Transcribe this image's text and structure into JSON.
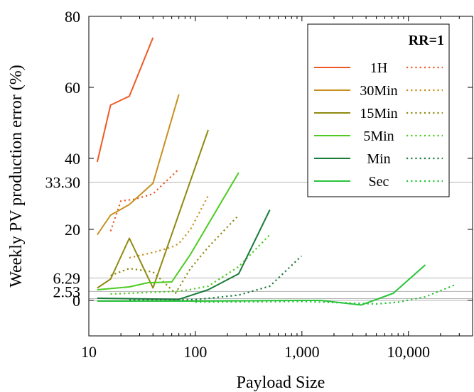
{
  "chart_data": {
    "type": "line",
    "xlabel": "Payload Size",
    "ylabel": "Weekly PV production error (%)",
    "xscale": "log",
    "xlim": [
      10,
      40000
    ],
    "ylim": [
      -10,
      80
    ],
    "grid": false,
    "xticks": [
      10,
      100,
      1000,
      10000
    ],
    "xtick_labels": [
      "10",
      "100",
      "1,000",
      "10,000"
    ],
    "yticks": [
      0,
      20,
      40,
      60,
      80
    ],
    "ytick_labels": [
      "0",
      "20",
      "40",
      "60",
      "80"
    ],
    "reference_lines": [
      {
        "value": 33.3,
        "label": "33.30"
      },
      {
        "value": 6.29,
        "label": "6.29"
      },
      {
        "value": 2.53,
        "label": "2.53"
      },
      {
        "value": 0.5,
        "label": ""
      },
      {
        "value": 0,
        "label": "0"
      }
    ],
    "legend": {
      "title": "RR=1",
      "position": "top-right"
    },
    "series": [
      {
        "name": "1H",
        "color": "#ee5a24",
        "style": "solid",
        "x": [
          12,
          16,
          24,
          40
        ],
        "y": [
          39,
          55,
          57.5,
          74
        ]
      },
      {
        "name": "1H",
        "color": "#ee5a24",
        "style": "dotted",
        "x": [
          16,
          20,
          27,
          40,
          70
        ],
        "y": [
          19.5,
          28,
          28.5,
          30,
          37
        ]
      },
      {
        "name": "30Min",
        "color": "#c8901f",
        "style": "solid",
        "x": [
          12,
          16,
          24,
          40,
          70
        ],
        "y": [
          18.5,
          24,
          27,
          33,
          58
        ]
      },
      {
        "name": "30Min",
        "color": "#c8901f",
        "style": "dotted",
        "x": [
          24,
          40,
          60,
          70,
          90,
          132
        ],
        "y": [
          12,
          13.5,
          15,
          16,
          20,
          29.5
        ]
      },
      {
        "name": "15Min",
        "color": "#8f8a10",
        "style": "solid",
        "x": [
          12,
          16,
          24,
          40,
          132
        ],
        "y": [
          3.5,
          6,
          17.5,
          3.5,
          48
        ]
      },
      {
        "name": "15Min",
        "color": "#8f8a10",
        "style": "dotted",
        "x": [
          16,
          24,
          40,
          65,
          90,
          132,
          255
        ],
        "y": [
          7,
          9,
          8,
          2,
          9,
          15,
          24
        ]
      },
      {
        "name": "5Min",
        "color": "#4ccc20",
        "style": "solid",
        "x": [
          12,
          24,
          36,
          40,
          60,
          90,
          255
        ],
        "y": [
          3,
          3.8,
          5,
          5,
          5.2,
          13,
          36
        ]
      },
      {
        "name": "5Min",
        "color": "#4ccc20",
        "style": "dotted",
        "x": [
          16,
          60,
          80,
          132,
          255,
          500
        ],
        "y": [
          1.8,
          2.5,
          2.8,
          4,
          9.5,
          18.5
        ]
      },
      {
        "name": "Min",
        "color": "#1a7a3a",
        "style": "solid",
        "x": [
          12,
          70,
          132,
          255,
          500
        ],
        "y": [
          0.6,
          0.3,
          3,
          7.5,
          25.5
        ]
      },
      {
        "name": "Min",
        "color": "#1a7a3a",
        "style": "dotted",
        "x": [
          24,
          100,
          255,
          500,
          990
        ],
        "y": [
          0.2,
          0.2,
          1.5,
          4,
          12.5
        ]
      },
      {
        "name": "Sec",
        "color": "#29c43a",
        "style": "solid",
        "x": [
          12,
          100,
          1000,
          1500,
          3600,
          7200,
          14400
        ],
        "y": [
          -0.2,
          -0.2,
          0,
          0,
          -1.3,
          2,
          10
        ]
      },
      {
        "name": "Sec",
        "color": "#29c43a",
        "style": "dotted",
        "x": [
          100,
          1000,
          5000,
          8000,
          14400,
          28000
        ],
        "y": [
          -0.5,
          -0.3,
          -1,
          -0.5,
          1,
          4.5
        ]
      }
    ]
  }
}
